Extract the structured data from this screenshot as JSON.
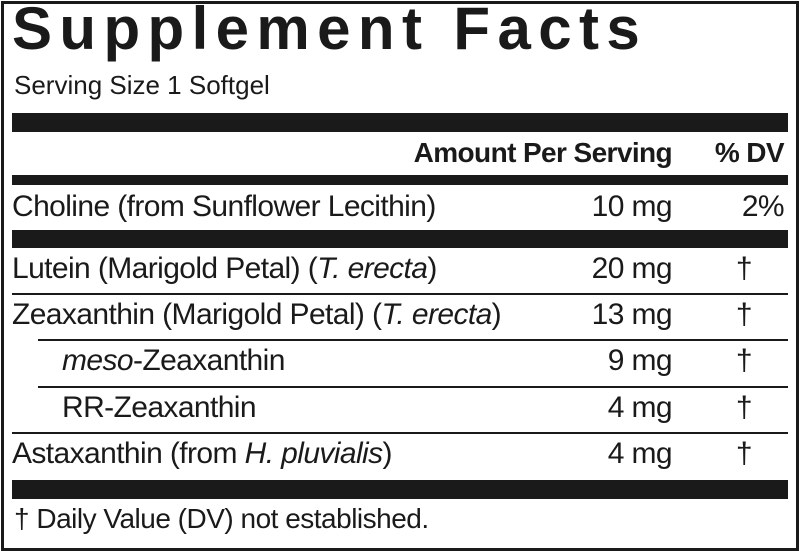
{
  "title": "Supplement Facts",
  "serving_size": "Serving Size 1 Softgel",
  "header": {
    "amount": "Amount Per Serving",
    "dv": "% DV"
  },
  "rows": [
    {
      "name": "Choline (from Sunflower Lecithin)",
      "amount": "10 mg",
      "dv": "2%"
    },
    {
      "name_pre": "Lutein (Marigold Petal) (",
      "name_italic": "T. erecta",
      "name_post": ")",
      "amount": "20 mg",
      "dv": "†"
    },
    {
      "name_pre": "Zeaxanthin (Marigold Petal) (",
      "name_italic": "T. erecta",
      "name_post": ")",
      "amount": "13 mg",
      "dv": "†"
    },
    {
      "name_italic": "meso",
      "name_post": "-Zeaxanthin",
      "amount": "9 mg",
      "dv": "†"
    },
    {
      "name": "RR-Zeaxanthin",
      "amount": "4 mg",
      "dv": "†"
    },
    {
      "name_pre": "Astaxanthin (from ",
      "name_italic": "H. pluvialis",
      "name_post": ")",
      "amount": "4 mg",
      "dv": "†"
    }
  ],
  "footnote": "† Daily Value (DV) not established."
}
